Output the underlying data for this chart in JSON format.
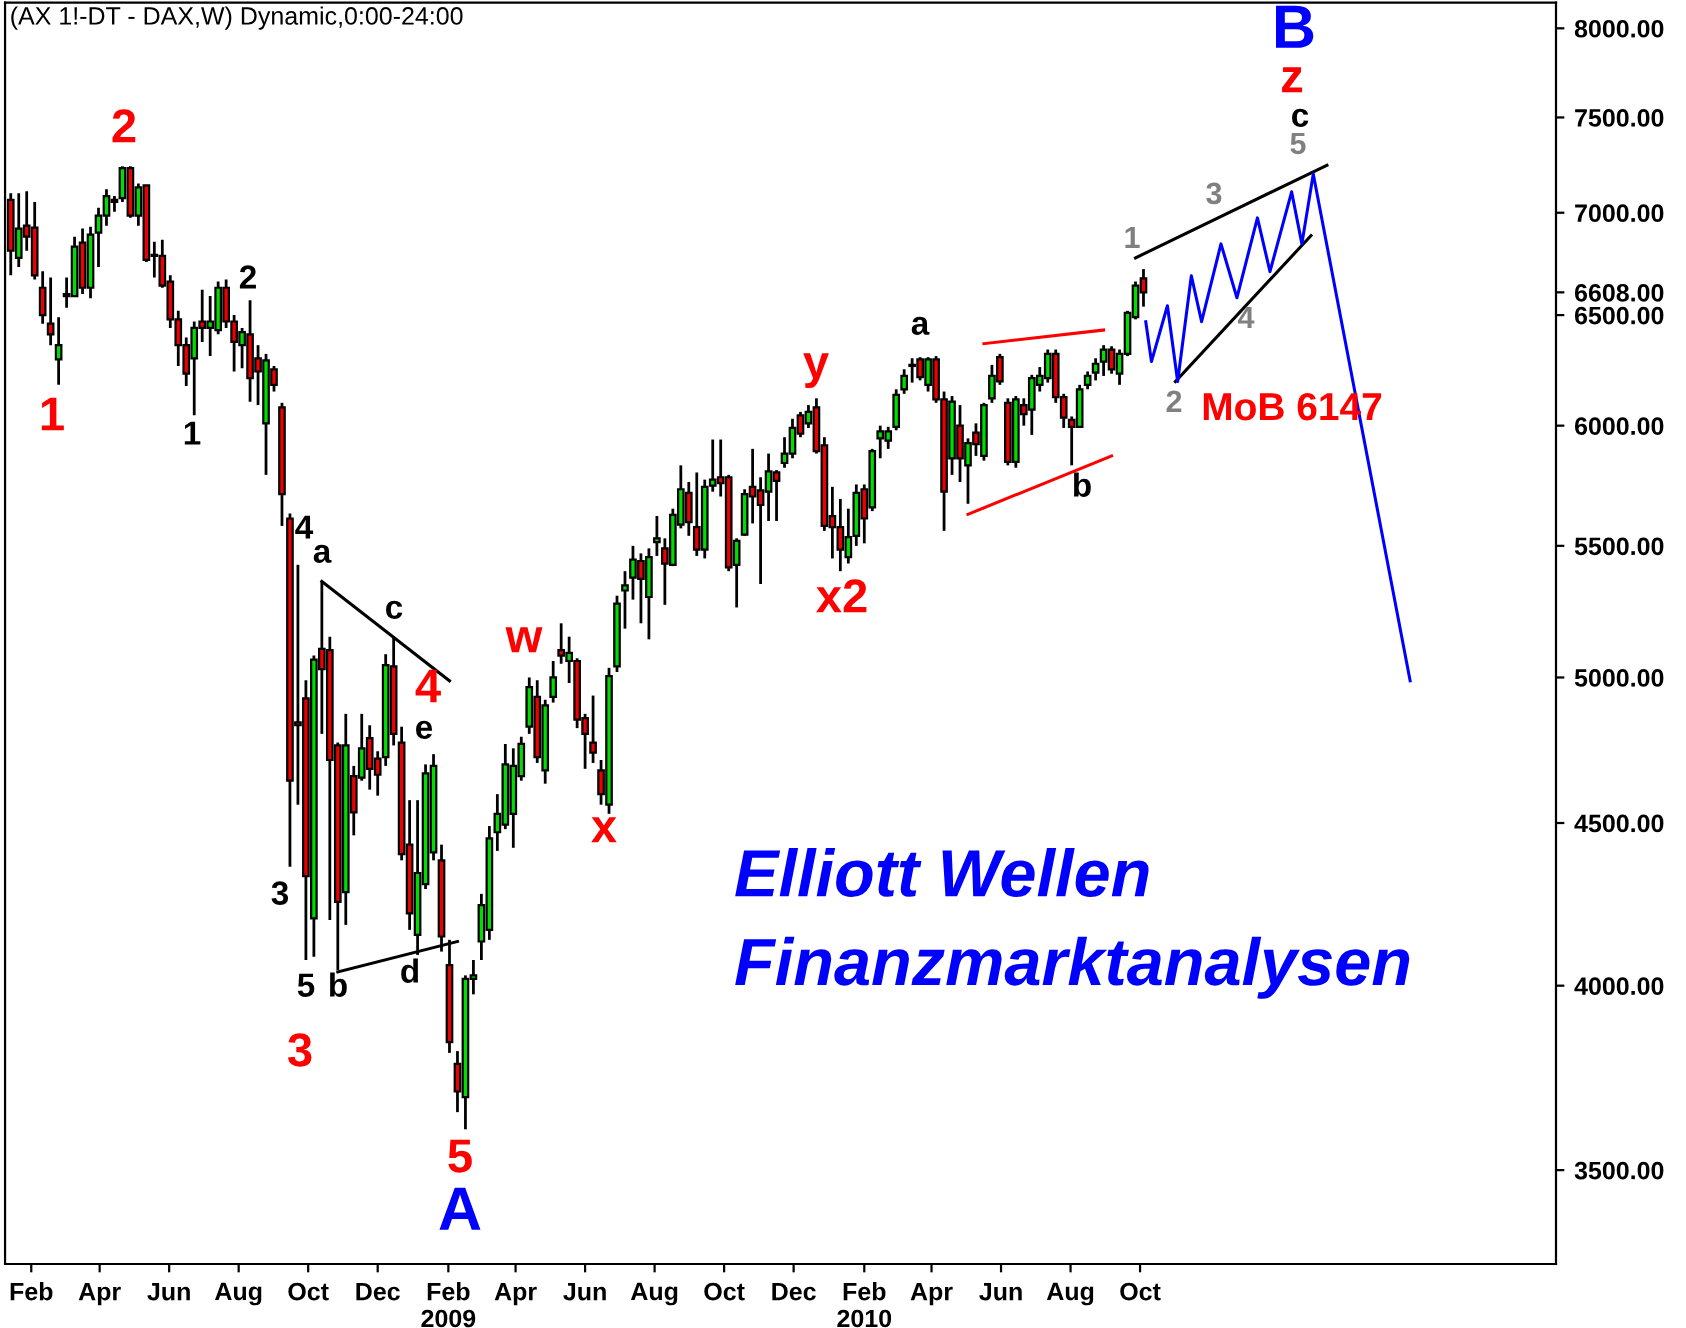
{
  "chart_data": {
    "type": "candlestick",
    "title": "(AX 1!-DT - DAX,W) Dynamic,0:00-24:00",
    "x": [
      "2008-01-14",
      "2008-01-21",
      "2008-01-28",
      "2008-02-04",
      "2008-02-11",
      "2008-02-18",
      "2008-02-25",
      "2008-03-03",
      "2008-03-10",
      "2008-03-17",
      "2008-03-24",
      "2008-03-31",
      "2008-04-07",
      "2008-04-14",
      "2008-04-21",
      "2008-04-28",
      "2008-05-05",
      "2008-05-12",
      "2008-05-19",
      "2008-05-26",
      "2008-06-02",
      "2008-06-09",
      "2008-06-16",
      "2008-06-23",
      "2008-06-30",
      "2008-07-07",
      "2008-07-14",
      "2008-07-21",
      "2008-07-28",
      "2008-08-04",
      "2008-08-11",
      "2008-08-18",
      "2008-08-25",
      "2008-09-01",
      "2008-09-08",
      "2008-09-15",
      "2008-09-22",
      "2008-09-29",
      "2008-10-06",
      "2008-10-13",
      "2008-10-20",
      "2008-10-27",
      "2008-11-03",
      "2008-11-10",
      "2008-11-17",
      "2008-11-24",
      "2008-12-01",
      "2008-12-08",
      "2008-12-15",
      "2008-12-22",
      "2008-12-29",
      "2009-01-05",
      "2009-01-12",
      "2009-01-19",
      "2009-01-26",
      "2009-02-02",
      "2009-02-09",
      "2009-02-16",
      "2009-02-23",
      "2009-03-02",
      "2009-03-09",
      "2009-03-16",
      "2009-03-23",
      "2009-03-30",
      "2009-04-06",
      "2009-04-13",
      "2009-04-20",
      "2009-04-27",
      "2009-05-04",
      "2009-05-11",
      "2009-05-18",
      "2009-05-25",
      "2009-06-01",
      "2009-06-08",
      "2009-06-15",
      "2009-06-22",
      "2009-06-29",
      "2009-07-06",
      "2009-07-13",
      "2009-07-20",
      "2009-07-27",
      "2009-08-03",
      "2009-08-10",
      "2009-08-17",
      "2009-08-24",
      "2009-08-31",
      "2009-09-07",
      "2009-09-14",
      "2009-09-21",
      "2009-09-28",
      "2009-10-05",
      "2009-10-12",
      "2009-10-19",
      "2009-10-26",
      "2009-11-02",
      "2009-11-09",
      "2009-11-16",
      "2009-11-23",
      "2009-11-30",
      "2009-12-07",
      "2009-12-14",
      "2009-12-21",
      "2009-12-28",
      "2010-01-04",
      "2010-01-11",
      "2010-01-18",
      "2010-01-25",
      "2010-02-01",
      "2010-02-08",
      "2010-02-15",
      "2010-02-22",
      "2010-03-01",
      "2010-03-08",
      "2010-03-15",
      "2010-03-22",
      "2010-03-29",
      "2010-04-05",
      "2010-04-12",
      "2010-04-19",
      "2010-04-26",
      "2010-05-03",
      "2010-05-10",
      "2010-05-17",
      "2010-05-24",
      "2010-05-31",
      "2010-06-07",
      "2010-06-14",
      "2010-06-21",
      "2010-06-28",
      "2010-07-05",
      "2010-07-12",
      "2010-07-19",
      "2010-07-26",
      "2010-08-02",
      "2010-08-09",
      "2010-08-16",
      "2010-08-23",
      "2010-08-30",
      "2010-09-06",
      "2010-09-13",
      "2010-09-20",
      "2010-09-27",
      "2010-10-04"
    ],
    "ohlc": [
      [
        7065,
        7100,
        6690,
        6810
      ],
      [
        6775,
        7100,
        6730,
        6920
      ],
      [
        6935,
        7110,
        6810,
        6880
      ],
      [
        6925,
        7055,
        6670,
        6690
      ],
      [
        6630,
        6710,
        6460,
        6500
      ],
      [
        6460,
        6680,
        6360,
        6410
      ],
      [
        6295,
        6490,
        6180,
        6360
      ],
      [
        6600,
        6680,
        6535,
        6590
      ],
      [
        6590,
        6880,
        6590,
        6830
      ],
      [
        6850,
        6920,
        6600,
        6630
      ],
      [
        6630,
        6930,
        6580,
        6890
      ],
      [
        6900,
        7025,
        6730,
        6985
      ],
      [
        6985,
        7120,
        6935,
        7085
      ],
      [
        7065,
        7085,
        7005,
        7055
      ],
      [
        7075,
        7240,
        7055,
        7230
      ],
      [
        7230,
        7240,
        6975,
        6985
      ],
      [
        6985,
        7150,
        6935,
        7130
      ],
      [
        7140,
        7140,
        6755,
        6765
      ],
      [
        6785,
        6855,
        6680,
        6790
      ],
      [
        6785,
        6865,
        6630,
        6640
      ],
      [
        6660,
        6690,
        6440,
        6480
      ],
      [
        6480,
        6520,
        6265,
        6360
      ],
      [
        6360,
        6395,
        6175,
        6230
      ],
      [
        6300,
        6470,
        6045,
        6440
      ],
      [
        6470,
        6620,
        6375,
        6440
      ],
      [
        6440,
        6590,
        6310,
        6470
      ],
      [
        6430,
        6660,
        6410,
        6630
      ],
      [
        6630,
        6670,
        6440,
        6470
      ],
      [
        6470,
        6500,
        6240,
        6375
      ],
      [
        6360,
        6440,
        6255,
        6420
      ],
      [
        6410,
        6570,
        6105,
        6210
      ],
      [
        6300,
        6360,
        6090,
        6240
      ],
      [
        6010,
        6320,
        5790,
        6290
      ],
      [
        6250,
        6265,
        6150,
        6180
      ],
      [
        6080,
        6100,
        5580,
        5710
      ],
      [
        5610,
        5630,
        4360,
        4640
      ],
      [
        4840,
        5425,
        4560,
        4830
      ],
      [
        4925,
        4990,
        4075,
        4330
      ],
      [
        4200,
        5080,
        4085,
        5065
      ],
      [
        5105,
        5360,
        4800,
        5030
      ],
      [
        5100,
        5150,
        4195,
        4710
      ],
      [
        4760,
        4770,
        4045,
        4250
      ],
      [
        4280,
        4870,
        4180,
        4760
      ],
      [
        4655,
        4690,
        4460,
        4535
      ],
      [
        4650,
        4870,
        4640,
        4750
      ],
      [
        4785,
        4830,
        4610,
        4680
      ],
      [
        4715,
        4740,
        4590,
        4660
      ],
      [
        4720,
        5085,
        4690,
        5045
      ],
      [
        5040,
        5150,
        4760,
        4800
      ],
      [
        4770,
        4825,
        4380,
        4400
      ],
      [
        4430,
        4575,
        4165,
        4215
      ],
      [
        4150,
        4575,
        4090,
        4340
      ],
      [
        4305,
        4695,
        4290,
        4665
      ],
      [
        4405,
        4730,
        4380,
        4690
      ],
      [
        4380,
        4430,
        4100,
        4145
      ],
      [
        4060,
        4135,
        3810,
        3840
      ],
      [
        3780,
        3815,
        3650,
        3705
      ],
      [
        3690,
        4030,
        3605,
        4020
      ],
      [
        4020,
        4075,
        3975,
        4030
      ],
      [
        4130,
        4275,
        4075,
        4240
      ],
      [
        4165,
        4490,
        4135,
        4450
      ],
      [
        4470,
        4595,
        4410,
        4530
      ],
      [
        4495,
        4765,
        4480,
        4695
      ],
      [
        4530,
        4750,
        4420,
        4690
      ],
      [
        4655,
        4790,
        4640,
        4765
      ],
      [
        4825,
        5000,
        4800,
        4965
      ],
      [
        4930,
        4990,
        4700,
        4720
      ],
      [
        4675,
        4920,
        4630,
        4900
      ],
      [
        4930,
        5060,
        4910,
        5000
      ],
      [
        5100,
        5200,
        5050,
        5080
      ],
      [
        5060,
        5150,
        4980,
        5090
      ],
      [
        5060,
        5070,
        4820,
        4850
      ],
      [
        4855,
        4870,
        4680,
        4800
      ],
      [
        4770,
        4935,
        4700,
        4735
      ],
      [
        4675,
        4710,
        4560,
        4595
      ],
      [
        4560,
        5035,
        4530,
        5005
      ],
      [
        5040,
        5305,
        5020,
        5275
      ],
      [
        5325,
        5400,
        5180,
        5345
      ],
      [
        5375,
        5500,
        5290,
        5445
      ],
      [
        5440,
        5470,
        5200,
        5370
      ],
      [
        5300,
        5490,
        5140,
        5455
      ],
      [
        5515,
        5620,
        5460,
        5530
      ],
      [
        5490,
        5530,
        5270,
        5430
      ],
      [
        5425,
        5650,
        5420,
        5625
      ],
      [
        5585,
        5830,
        5570,
        5730
      ],
      [
        5715,
        5760,
        5540,
        5595
      ],
      [
        5575,
        5800,
        5460,
        5485
      ],
      [
        5485,
        5770,
        5450,
        5740
      ],
      [
        5745,
        5940,
        5720,
        5770
      ],
      [
        5780,
        5940,
        5700,
        5755
      ],
      [
        5780,
        5790,
        5400,
        5415
      ],
      [
        5425,
        5530,
        5260,
        5520
      ],
      [
        5545,
        5730,
        5540,
        5710
      ],
      [
        5740,
        5900,
        5590,
        5700
      ],
      [
        5725,
        5780,
        5350,
        5665
      ],
      [
        5720,
        5880,
        5600,
        5805
      ],
      [
        5800,
        5810,
        5600,
        5765
      ],
      [
        5840,
        5950,
        5820,
        5880
      ],
      [
        5880,
        6030,
        5860,
        5990
      ],
      [
        6045,
        6060,
        5950,
        5965
      ],
      [
        6010,
        6090,
        5990,
        6060
      ],
      [
        6080,
        6120,
        5880,
        5890
      ],
      [
        5915,
        5950,
        5560,
        5580
      ],
      [
        5620,
        5740,
        5450,
        5575
      ],
      [
        5575,
        5690,
        5400,
        5485
      ],
      [
        5455,
        5650,
        5430,
        5535
      ],
      [
        5540,
        5750,
        5500,
        5715
      ],
      [
        5730,
        5750,
        5510,
        5610
      ],
      [
        5655,
        5900,
        5640,
        5890
      ],
      [
        5945,
        6000,
        5860,
        5975
      ],
      [
        5935,
        5995,
        5900,
        5975
      ],
      [
        5995,
        6160,
        5980,
        6135
      ],
      [
        6160,
        6250,
        6140,
        6220
      ],
      [
        6265,
        6300,
        6190,
        6270
      ],
      [
        6295,
        6305,
        6200,
        6215
      ],
      [
        6180,
        6305,
        6150,
        6295
      ],
      [
        6295,
        6310,
        6100,
        6115
      ],
      [
        6115,
        6150,
        5560,
        5720
      ],
      [
        5860,
        6130,
        5790,
        6105
      ],
      [
        6000,
        6090,
        5760,
        5860
      ],
      [
        5830,
        5945,
        5670,
        5925
      ],
      [
        5970,
        6010,
        5870,
        5920
      ],
      [
        5870,
        6100,
        5850,
        6090
      ],
      [
        6120,
        6270,
        6100,
        6220
      ],
      [
        6305,
        6320,
        6180,
        6195
      ],
      [
        6100,
        6120,
        5830,
        5845
      ],
      [
        5845,
        6130,
        5820,
        6115
      ],
      [
        6090,
        6120,
        6000,
        6050
      ],
      [
        6070,
        6225,
        5960,
        6210
      ],
      [
        6180,
        6260,
        6150,
        6220
      ],
      [
        6210,
        6340,
        6190,
        6320
      ],
      [
        6320,
        6340,
        6100,
        6125
      ],
      [
        6125,
        6140,
        5990,
        6035
      ],
      [
        6025,
        6040,
        5830,
        5995
      ],
      [
        5995,
        6180,
        5990,
        6160
      ],
      [
        6180,
        6240,
        6160,
        6220
      ],
      [
        6235,
        6300,
        6200,
        6275
      ],
      [
        6285,
        6360,
        6220,
        6340
      ],
      [
        6340,
        6355,
        6230,
        6250
      ],
      [
        6230,
        6340,
        6180,
        6320
      ],
      [
        6320,
        6520,
        6310,
        6510
      ],
      [
        6490,
        6660,
        6480,
        6640
      ],
      [
        6675,
        6720,
        6540,
        6608
      ]
    ],
    "series": [
      {
        "type": "line",
        "color": "#000000",
        "x": [
          "2008-10-13",
          "2009-02-02"
        ],
        "values": [
          5360,
          4988
        ]
      },
      {
        "type": "line",
        "color": "#000000",
        "x": [
          "2008-10-27",
          "2009-02-09"
        ],
        "values": [
          4040,
          4130
        ]
      },
      {
        "type": "line",
        "color": "#ff0000",
        "x": [
          "2010-05-17",
          "2010-08-30"
        ],
        "values": [
          6367,
          6430
        ]
      },
      {
        "type": "line",
        "color": "#ff0000",
        "x": [
          "2010-05-03",
          "2010-09-06"
        ],
        "values": [
          5627,
          5870
        ]
      },
      {
        "type": "line",
        "color": "#000000",
        "x": [
          "2010-09-27",
          "2011-03-14"
        ],
        "values": [
          6775,
          7245
        ]
      },
      {
        "type": "line",
        "color": "#000000",
        "x": [
          "2010-11-01",
          "2011-02-28"
        ],
        "values": [
          6195,
          6885
        ]
      },
      {
        "type": "line",
        "color": "#0000ff",
        "x": [
          "2010-10-06",
          "2010-10-11",
          "2010-10-25",
          "2010-11-03",
          "2010-11-15",
          "2010-11-24",
          "2010-12-11",
          "2010-12-25",
          "2011-01-12",
          "2011-01-23",
          "2011-02-11",
          "2011-02-20",
          "2011-03-02",
          "2011-05-26"
        ],
        "values": [
          6469,
          6285,
          6544,
          6195,
          6688,
          6469,
          6844,
          6582,
          6974,
          6708,
          7107,
          6844,
          7199,
          4988
        ]
      }
    ],
    "annotations": [
      "2",
      "1",
      "2",
      "1",
      "4",
      "a",
      "c",
      "4",
      "e",
      "3",
      "5",
      "b",
      "d",
      "3",
      "5",
      "A",
      "w",
      "x",
      "y",
      "x2",
      "a",
      "b",
      "1",
      "2",
      "3",
      "4",
      "5",
      "c",
      "z",
      "B",
      "MoB 6147",
      "Elliott Wellen\nFinanzmarktanalysen"
    ],
    "xlim": [
      "2008-01-09",
      "2011-10-01"
    ],
    "xticks": [
      {
        "value": "2008-02-01",
        "label": "Feb"
      },
      {
        "value": "2008-04-01",
        "label": "Apr"
      },
      {
        "value": "2008-06-01",
        "label": "Jun"
      },
      {
        "value": "2008-08-01",
        "label": "Aug"
      },
      {
        "value": "2008-10-01",
        "label": "Oct"
      },
      {
        "value": "2008-12-01",
        "label": "Dec"
      },
      {
        "value": "2009-02-01",
        "label": "Feb\n2009"
      },
      {
        "value": "2009-04-01",
        "label": "Apr"
      },
      {
        "value": "2009-06-01",
        "label": "Jun"
      },
      {
        "value": "2009-08-01",
        "label": "Aug"
      },
      {
        "value": "2009-10-01",
        "label": "Oct"
      },
      {
        "value": "2009-12-01",
        "label": "Dec"
      },
      {
        "value": "2010-02-01",
        "label": "Feb\n2010"
      },
      {
        "value": "2010-04-01",
        "label": "Apr"
      },
      {
        "value": "2010-06-01",
        "label": "Jun"
      },
      {
        "value": "2010-08-01",
        "label": "Aug"
      },
      {
        "value": "2010-10-01",
        "label": "Oct"
      }
    ],
    "ylim": [
      3270,
      8150
    ],
    "yticks": [
      {
        "value": 3500,
        "label": "3500.00"
      },
      {
        "value": 4000,
        "label": "4000.00"
      },
      {
        "value": 4500,
        "label": "4500.00"
      },
      {
        "value": 5000,
        "label": "5000.00"
      },
      {
        "value": 5500,
        "label": "5500.00"
      },
      {
        "value": 6000,
        "label": "6000.00"
      },
      {
        "value": 6500,
        "label": "6500.00"
      },
      {
        "value": 6608,
        "label": "6608.00"
      },
      {
        "value": 7000,
        "label": "7000.00"
      },
      {
        "value": 7500,
        "label": "7500.00"
      },
      {
        "value": 8000,
        "label": "8000.00"
      }
    ],
    "log": true,
    "grid": false,
    "legend": false
  }
}
